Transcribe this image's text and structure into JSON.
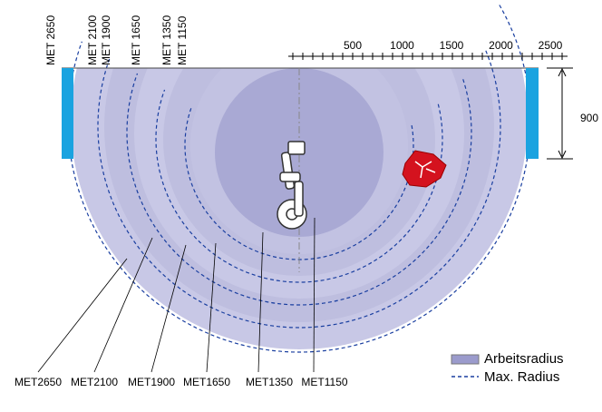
{
  "top_labels": [
    "MET 2650",
    "MET 2100",
    "MET 1900",
    "MET 1650",
    "MET 1350",
    "MET 1150"
  ],
  "scale": {
    "labels": [
      "500",
      "1000",
      "1500",
      "2000",
      "2500"
    ]
  },
  "height_dimension": "900",
  "bottom_labels": [
    "MET2650",
    "MET2100",
    "MET1900",
    "MET1650",
    "MET1350",
    "MET1150"
  ],
  "legend": {
    "work_radius": "Arbeitsradius",
    "max_radius": "Max. Radius"
  }
}
